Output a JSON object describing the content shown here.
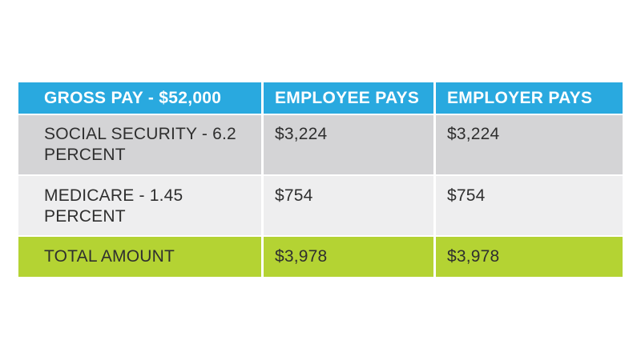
{
  "table": {
    "headers": [
      "GROSS PAY - $52,000",
      "EMPLOYEE PAYS",
      "EMPLOYER PAYS"
    ],
    "rows": [
      {
        "label": "SOCIAL SECURITY - 6.2 PERCENT",
        "employee": "$3,224",
        "employer": "$3,224"
      },
      {
        "label": "MEDICARE - 1.45 PERCENT",
        "employee": "$754",
        "employer": "$754"
      },
      {
        "label": "TOTAL AMOUNT",
        "employee": "$3,978",
        "employer": "$3,978"
      }
    ]
  },
  "colors": {
    "header": "#29a9df",
    "row_social_security": "#d4d4d6",
    "row_medicare": "#eeeeef",
    "row_total": "#b4d333"
  }
}
